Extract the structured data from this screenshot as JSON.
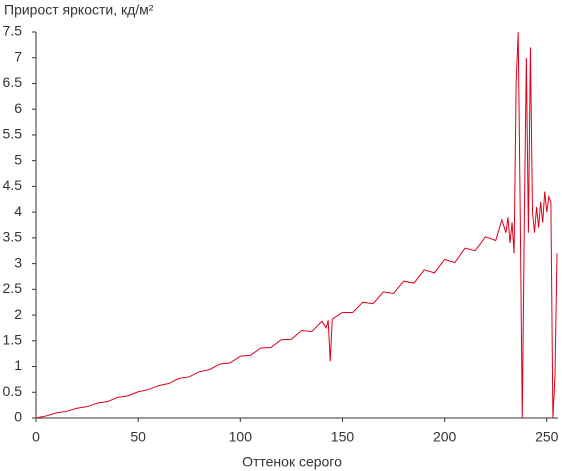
{
  "chart_data": {
    "type": "line",
    "title": "Прирост яркости, кд/м²",
    "x_label": "Оттенок серого",
    "x": [
      0,
      5,
      10,
      15,
      20,
      25,
      30,
      35,
      40,
      45,
      50,
      55,
      60,
      65,
      70,
      75,
      80,
      85,
      90,
      95,
      100,
      105,
      110,
      115,
      120,
      125,
      130,
      135,
      140,
      142,
      143,
      144,
      145,
      150,
      155,
      160,
      165,
      170,
      175,
      180,
      185,
      190,
      195,
      200,
      205,
      210,
      215,
      220,
      225,
      228,
      230,
      231,
      232,
      233,
      234,
      235,
      236,
      237,
      238,
      239,
      240,
      241,
      242,
      243,
      244,
      245,
      246,
      247,
      248,
      249,
      250,
      251,
      252,
      253,
      254,
      255
    ],
    "series": [
      {
        "name": "Прирост яркости",
        "color": "#e0001b",
        "values": [
          0,
          0.04,
          0.1,
          0.13,
          0.19,
          0.22,
          0.29,
          0.32,
          0.4,
          0.43,
          0.51,
          0.55,
          0.63,
          0.67,
          0.77,
          0.8,
          0.9,
          0.94,
          1.05,
          1.07,
          1.2,
          1.22,
          1.36,
          1.37,
          1.52,
          1.53,
          1.7,
          1.68,
          1.88,
          1.75,
          1.9,
          1.1,
          1.92,
          2.05,
          2.05,
          2.25,
          2.22,
          2.45,
          2.42,
          2.66,
          2.62,
          2.88,
          2.82,
          3.08,
          3.02,
          3.3,
          3.25,
          3.52,
          3.45,
          3.85,
          3.6,
          3.9,
          3.4,
          3.8,
          3.2,
          6.5,
          7.5,
          4.0,
          0,
          3.8,
          7.0,
          3.6,
          7.2,
          4.0,
          3.6,
          4.1,
          3.7,
          4.2,
          3.8,
          4.4,
          4.0,
          4.3,
          4.2,
          0,
          0.8,
          3.2
        ]
      }
    ],
    "xlim": [
      0,
      255
    ],
    "ylim": [
      0,
      7.5
    ],
    "xticks": [
      0,
      50,
      100,
      150,
      200,
      250
    ],
    "yticks": [
      0,
      0.5,
      1,
      1.5,
      2,
      2.5,
      3,
      3.5,
      4,
      4.5,
      5,
      5.5,
      6,
      6.5,
      7,
      7.5
    ]
  }
}
